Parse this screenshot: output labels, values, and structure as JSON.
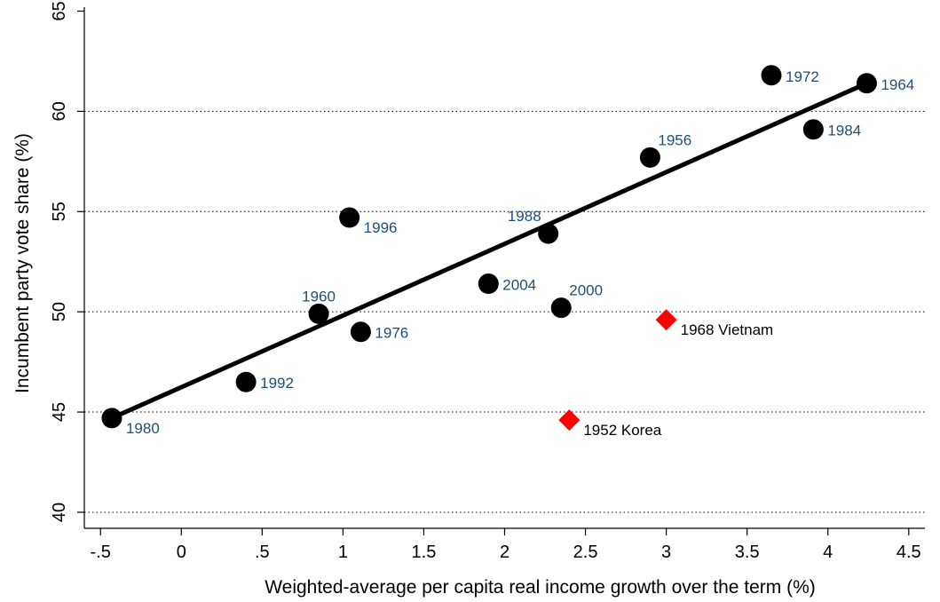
{
  "chart_data": {
    "type": "scatter",
    "xlabel": "Weighted-average per capita real income growth over the term (%)",
    "ylabel": "Incumbent party vote share (%)",
    "xlim": [
      -0.6,
      4.6
    ],
    "ylim": [
      39.2,
      65.2
    ],
    "x_ticks": [
      -0.5,
      0,
      0.5,
      1,
      1.5,
      2,
      2.5,
      3,
      3.5,
      4,
      4.5
    ],
    "x_tick_labels": [
      "-.5",
      "0",
      ".5",
      "1",
      "1.5",
      "2",
      "2.5",
      "3",
      "3.5",
      "4",
      "4.5"
    ],
    "y_ticks": [
      40,
      45,
      50,
      55,
      60,
      65
    ],
    "y_tick_labels": [
      "40",
      "45",
      "50",
      "55",
      "60",
      "65"
    ],
    "grid": "horizontal dotted at 45, 50, 55, 60",
    "fit_line": {
      "x": [
        -0.43,
        4.24
      ],
      "y": [
        44.7,
        61.4
      ],
      "color": "#000000"
    },
    "series": [
      {
        "marker": "circle",
        "color": "#000000",
        "label_color": "#1f4e79",
        "points": [
          {
            "label": "1980",
            "x": -0.43,
            "y": 44.7,
            "label_pos": "right-below"
          },
          {
            "label": "1992",
            "x": 0.4,
            "y": 46.5,
            "label_pos": "right"
          },
          {
            "label": "1960",
            "x": 0.85,
            "y": 49.9,
            "label_pos": "above"
          },
          {
            "label": "1996",
            "x": 1.04,
            "y": 54.7,
            "label_pos": "right-below"
          },
          {
            "label": "1976",
            "x": 1.11,
            "y": 49.0,
            "label_pos": "right"
          },
          {
            "label": "2004",
            "x": 1.9,
            "y": 51.4,
            "label_pos": "right"
          },
          {
            "label": "1988",
            "x": 2.27,
            "y": 53.9,
            "label_pos": "above-left"
          },
          {
            "label": "2000",
            "x": 2.35,
            "y": 50.2,
            "label_pos": "above-right"
          },
          {
            "label": "1956",
            "x": 2.9,
            "y": 57.7,
            "label_pos": "above-right"
          },
          {
            "label": "1972",
            "x": 3.65,
            "y": 61.8,
            "label_pos": "right"
          },
          {
            "label": "1984",
            "x": 3.91,
            "y": 59.1,
            "label_pos": "right"
          },
          {
            "label": "1964",
            "x": 4.24,
            "y": 61.4,
            "label_pos": "right"
          }
        ]
      },
      {
        "marker": "diamond",
        "color": "#ff0000",
        "label_color": "#000000",
        "points": [
          {
            "label": "1968 Vietnam",
            "x": 3.0,
            "y": 49.6,
            "label_pos": "right-below"
          },
          {
            "label": "1952 Korea",
            "x": 2.4,
            "y": 44.6,
            "label_pos": "right-below"
          }
        ]
      }
    ]
  }
}
